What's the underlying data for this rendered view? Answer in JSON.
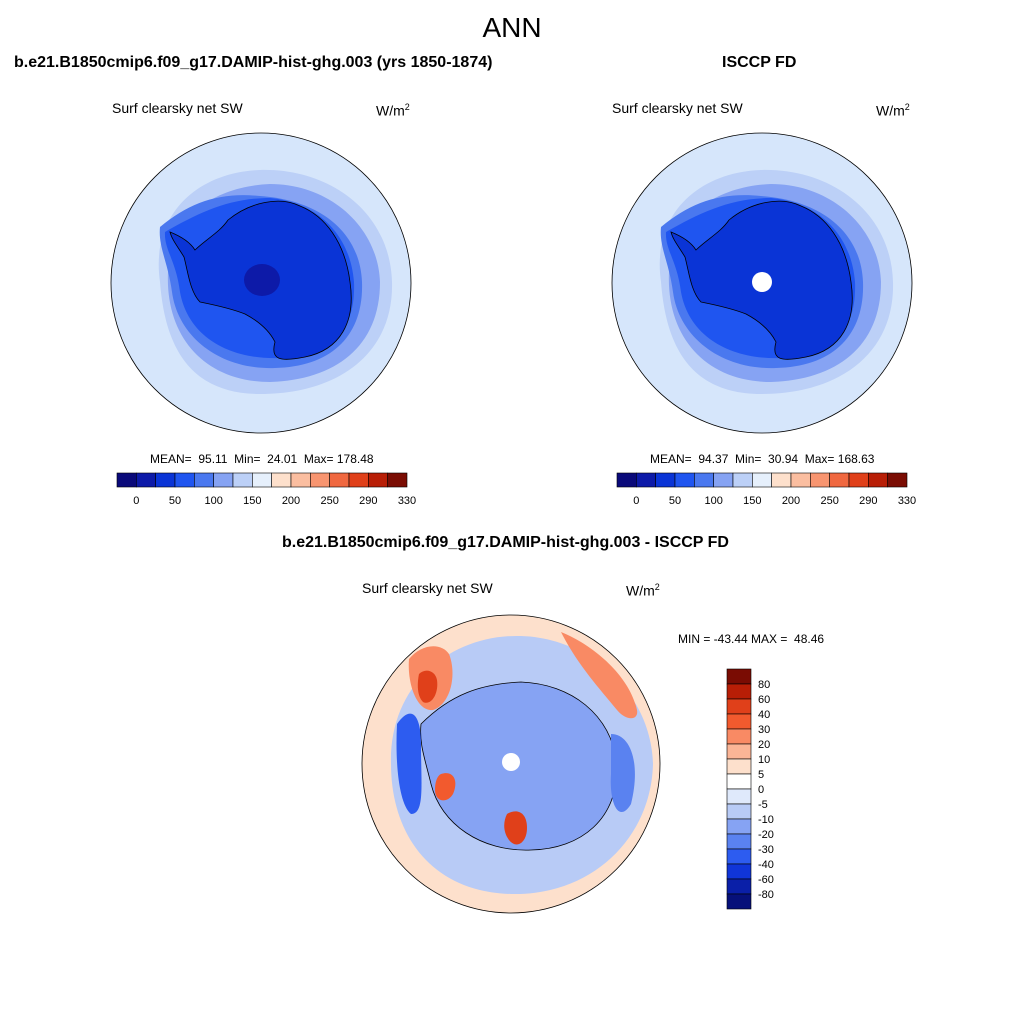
{
  "page": {
    "title": "ANN"
  },
  "panels": {
    "model": {
      "heading": "b.e21.B1850cmip6.f09_g17.DAMIP-hist-ghg.003 (yrs 1850-1874)",
      "variable": "Surf clearsky net SW",
      "units_base": "W/m",
      "units_exp": "2",
      "stats": "MEAN=  95.11  Min=  24.01  Max= 178.48"
    },
    "obs": {
      "heading": "ISCCP FD",
      "variable": "Surf clearsky net SW",
      "units_base": "W/m",
      "units_exp": "2",
      "stats": "MEAN=  94.37  Min=  30.94  Max= 168.63"
    },
    "diff": {
      "heading": "b.e21.B1850cmip6.f09_g17.DAMIP-hist-ghg.003 - ISCCP FD",
      "variable": "Surf clearsky net SW",
      "units_base": "W/m",
      "units_exp": "2",
      "stats": "MIN = -43.44 MAX =  48.46"
    }
  },
  "chart_data": [
    {
      "type": "heatmap",
      "projection": "south-polar-stereographic",
      "title": "Surf clearsky net SW",
      "units": "W/m2",
      "mean": 95.11,
      "min": 24.01,
      "max": 178.48,
      "colorbar": {
        "orientation": "horizontal",
        "ticks": [
          "0",
          "50",
          "100",
          "150",
          "200",
          "250",
          "290",
          "330"
        ],
        "colors": [
          "#0a0a7a",
          "#0d1aa8",
          "#0a34d6",
          "#1f55f0",
          "#4a78ef",
          "#86a3f3",
          "#bcd0f7",
          "#e6f0fc",
          "#fde0cc",
          "#fbbea0",
          "#f89570",
          "#f06840",
          "#e0401a",
          "#b81e06",
          "#7a0c03"
        ]
      }
    },
    {
      "type": "heatmap",
      "projection": "south-polar-stereographic",
      "title": "Surf clearsky net SW",
      "units": "W/m2",
      "mean": 94.37,
      "min": 30.94,
      "max": 168.63,
      "colorbar": {
        "orientation": "horizontal",
        "ticks": [
          "0",
          "50",
          "100",
          "150",
          "200",
          "250",
          "290",
          "330"
        ],
        "colors": [
          "#0a0a7a",
          "#0d1aa8",
          "#0a34d6",
          "#1f55f0",
          "#4a78ef",
          "#86a3f3",
          "#bcd0f7",
          "#e6f0fc",
          "#fde0cc",
          "#fbbea0",
          "#f89570",
          "#f06840",
          "#e0401a",
          "#b81e06",
          "#7a0c03"
        ]
      }
    },
    {
      "type": "heatmap",
      "projection": "south-polar-stereographic",
      "title": "Surf clearsky net SW",
      "units": "W/m2",
      "min": -43.44,
      "max": 48.46,
      "colorbar": {
        "orientation": "vertical",
        "ticks": [
          "80",
          "60",
          "40",
          "30",
          "20",
          "10",
          "5",
          "0",
          "-5",
          "-10",
          "-20",
          "-30",
          "-40",
          "-60",
          "-80"
        ],
        "colors": [
          "#7a0c03",
          "#b81e06",
          "#e0401a",
          "#f25a2e",
          "#f98a64",
          "#fbb596",
          "#fde0cc",
          "#ffffff",
          "#dfe9fb",
          "#b8cbf6",
          "#86a3f3",
          "#5a82f0",
          "#2d5cf0",
          "#1035d8",
          "#0a1fa8",
          "#06107a"
        ]
      }
    }
  ]
}
